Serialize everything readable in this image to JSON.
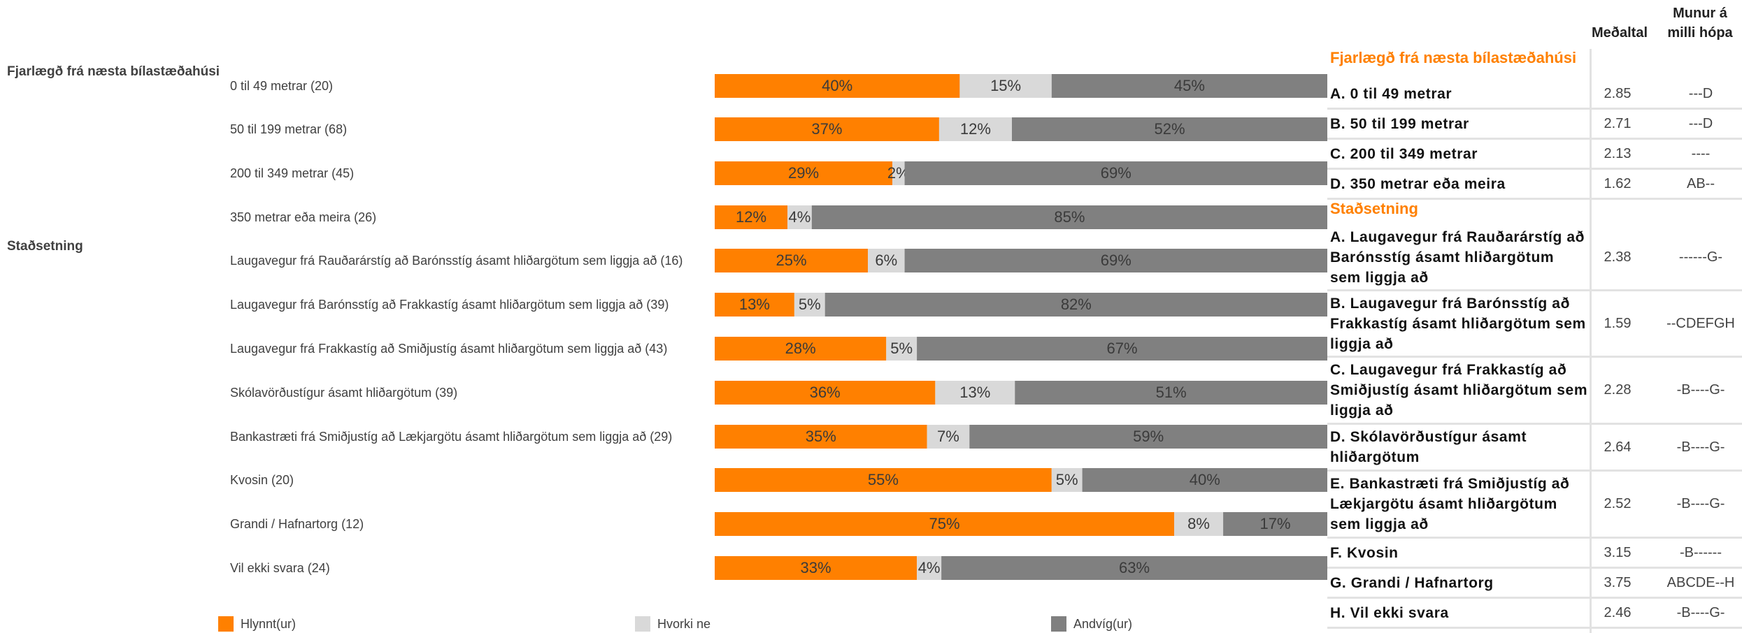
{
  "colors": {
    "positive": "#ff8000",
    "neutral": "#d9d9d9",
    "negative": "#808080",
    "group_title": "#ff8000"
  },
  "chart_data": {
    "type": "bar",
    "orientation": "horizontal",
    "stacked": true,
    "percent": true,
    "legend": {
      "placement": "bottom",
      "labels": [
        "Hlynnt(ur)",
        "Hvorki ne",
        "Andvíg(ur)"
      ]
    },
    "groups": [
      {
        "name": "Fjarlægð frá næsta bílastæðahúsi",
        "rows": [
          {
            "label": "0 til 49 metrar (20)",
            "values": [
              40,
              15,
              45
            ]
          },
          {
            "label": "50 til 199 metrar (68)",
            "values": [
              37,
              12,
              52
            ]
          },
          {
            "label": "200 til 349 metrar (45)",
            "values": [
              29,
              2,
              69
            ]
          },
          {
            "label": "350 metrar eða meira (26)",
            "values": [
              12,
              4,
              85
            ]
          }
        ]
      },
      {
        "name": "Staðsetning",
        "rows": [
          {
            "label": "Laugavegur frá Rauðarárstíg að Barónsstíg ásamt hliðargötum sem liggja að (16)",
            "values": [
              25,
              6,
              69
            ]
          },
          {
            "label": "Laugavegur frá Barónsstíg að Frakkastíg ásamt hliðargötum sem liggja að (39)",
            "values": [
              13,
              5,
              82
            ]
          },
          {
            "label": "Laugavegur frá Frakkastíg að Smiðjustíg ásamt hliðargötum sem liggja að (43)",
            "values": [
              28,
              5,
              67
            ]
          },
          {
            "label": "Skólavörðustígur ásamt hliðargötum (39)",
            "values": [
              36,
              13,
              51
            ]
          },
          {
            "label": "Bankastræti frá Smiðjustíg að Lækjargötu ásamt hliðargötum sem liggja að (29)",
            "values": [
              35,
              7,
              59
            ]
          },
          {
            "label": "Kvosin (20)",
            "values": [
              55,
              5,
              40
            ]
          },
          {
            "label": "Grandi / Hafnartorg (12)",
            "values": [
              75,
              8,
              17
            ]
          },
          {
            "label": "Vil ekki svara (24)",
            "values": [
              33,
              4,
              63
            ]
          }
        ]
      }
    ]
  },
  "table": {
    "header_mean": "Meðaltal",
    "header_diff": "Munur á milli hópa",
    "groups": [
      {
        "title": "Fjarlægð frá næsta bílastæðahúsi",
        "rows": [
          {
            "name": "A. 0 til 49 metrar",
            "mean": "2.85",
            "diff": "---D"
          },
          {
            "name": "B. 50 til 199 metrar",
            "mean": "2.71",
            "diff": "---D"
          },
          {
            "name": "C. 200 til 349 metrar",
            "mean": "2.13",
            "diff": "----"
          },
          {
            "name": "D. 350 metrar eða meira",
            "mean": "1.62",
            "diff": "AB--"
          }
        ]
      },
      {
        "title": "Staðsetning",
        "rows": [
          {
            "name": "A. Laugavegur frá Rauðarárstíg að Barónsstíg ásamt hliðargötum sem liggja að",
            "mean": "2.38",
            "diff": "------G-"
          },
          {
            "name": "B. Laugavegur frá Barónsstíg að Frakkastíg ásamt hliðargötum sem liggja að",
            "mean": "1.59",
            "diff": "--CDEFGH"
          },
          {
            "name": "C. Laugavegur frá Frakkastíg að Smiðjustíg ásamt hliðargötum sem liggja að",
            "mean": "2.28",
            "diff": "-B----G-"
          },
          {
            "name": "D. Skólavörðustígur ásamt hliðargötum",
            "mean": "2.64",
            "diff": "-B----G-"
          },
          {
            "name": "E. Bankastræti frá Smiðjustíg að Lækjargötu ásamt hliðargötum sem liggja að",
            "mean": "2.52",
            "diff": "-B----G-"
          },
          {
            "name": "F. Kvosin",
            "mean": "3.15",
            "diff": "-B------"
          },
          {
            "name": "G. Grandi / Hafnartorg",
            "mean": "3.75",
            "diff": "ABCDE--H"
          },
          {
            "name": "H. Vil ekki svara",
            "mean": "2.46",
            "diff": "-B----G-"
          }
        ]
      }
    ]
  }
}
